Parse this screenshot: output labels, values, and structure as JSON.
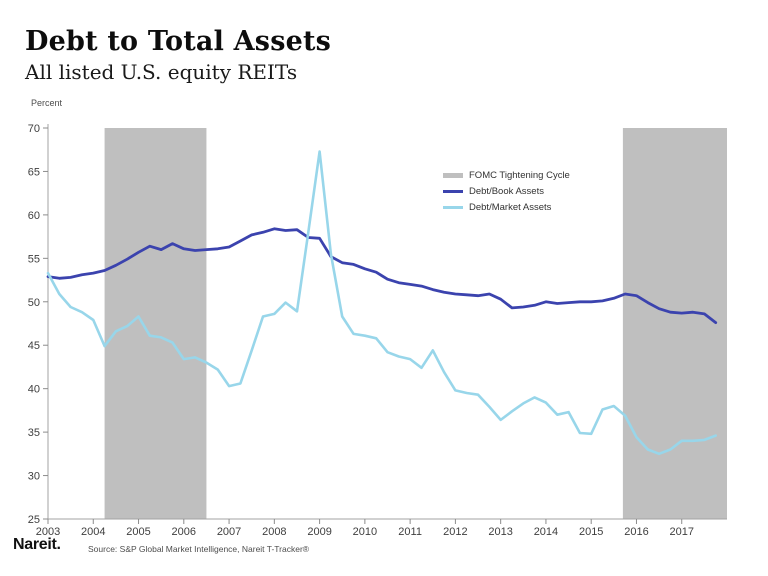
{
  "header": {
    "title": "Debt to Total Assets",
    "subtitle": "All listed U.S. equity REITs"
  },
  "chart_data": {
    "type": "line",
    "title": "Debt to Total Assets",
    "subtitle": "All listed U.S. equity REITs",
    "ylabel": "Percent",
    "ylim": [
      25,
      70
    ],
    "ytick_step": 5,
    "yticks": [
      25,
      30,
      35,
      40,
      45,
      50,
      55,
      60,
      65,
      70
    ],
    "xlim": [
      2003,
      2018
    ],
    "xticks": [
      2003,
      2004,
      2005,
      2006,
      2007,
      2008,
      2009,
      2010,
      2011,
      2012,
      2013,
      2014,
      2015,
      2016,
      2017
    ],
    "x_start": 2003.0,
    "x_interval": 0.25,
    "grid": false,
    "legend_position": "upper-center",
    "axis_color": "#a3a3a3",
    "tick_color": "#8c8c8c",
    "tick_label_color": "#3f3f3f",
    "bands": {
      "label": "FOMC Tightening Cycle",
      "color": "#bfbfbf",
      "ranges": [
        [
          2004.25,
          2006.5
        ],
        [
          2015.7,
          2018.0
        ]
      ]
    },
    "series": [
      {
        "name": "Debt/Book Assets",
        "color": "#3b43ae",
        "stroke_width": 2.8,
        "values": [
          52.9,
          52.7,
          52.8,
          53.1,
          53.3,
          53.6,
          54.2,
          54.9,
          55.7,
          56.4,
          56.0,
          56.7,
          56.1,
          55.9,
          56.0,
          56.1,
          56.3,
          57.0,
          57.7,
          58.0,
          58.4,
          58.2,
          58.3,
          57.4,
          57.3,
          55.2,
          54.5,
          54.3,
          53.8,
          53.4,
          52.6,
          52.2,
          52.0,
          51.8,
          51.4,
          51.1,
          50.9,
          50.8,
          50.7,
          50.9,
          50.3,
          49.3,
          49.4,
          49.6,
          50.0,
          49.8,
          49.9,
          50.0,
          50.0,
          50.1,
          50.4,
          50.9,
          50.7,
          49.9,
          49.2,
          48.8,
          48.7,
          48.8,
          48.6,
          47.6
        ]
      },
      {
        "name": "Debt/Market Assets",
        "color": "#98d6ea",
        "stroke_width": 2.6,
        "values": [
          53.3,
          50.9,
          49.4,
          48.8,
          47.9,
          44.9,
          46.6,
          47.2,
          48.3,
          46.1,
          45.9,
          45.3,
          43.4,
          43.6,
          43.0,
          42.2,
          40.3,
          40.6,
          44.4,
          48.3,
          48.6,
          49.9,
          48.9,
          58.0,
          67.3,
          55.5,
          48.3,
          46.3,
          46.1,
          45.8,
          44.2,
          43.7,
          43.4,
          42.4,
          44.4,
          41.9,
          39.8,
          39.5,
          39.3,
          37.9,
          36.4,
          37.4,
          38.3,
          39.0,
          38.4,
          37.0,
          37.3,
          34.9,
          34.8,
          37.6,
          38.0,
          36.9,
          34.4,
          33.0,
          32.5,
          33.0,
          34.0,
          34.0,
          34.1,
          34.6
        ]
      }
    ]
  },
  "legend": {
    "items": [
      {
        "label": "FOMC Tightening Cycle",
        "color": "#bfbfbf"
      },
      {
        "label": "Debt/Book Assets",
        "color": "#3b43ae"
      },
      {
        "label": "Debt/Market Assets",
        "color": "#98d6ea"
      }
    ]
  },
  "footer": {
    "logo": "Nareit.",
    "source": "Source: S&P Global Market Intelligence, Nareit T-Tracker®"
  }
}
